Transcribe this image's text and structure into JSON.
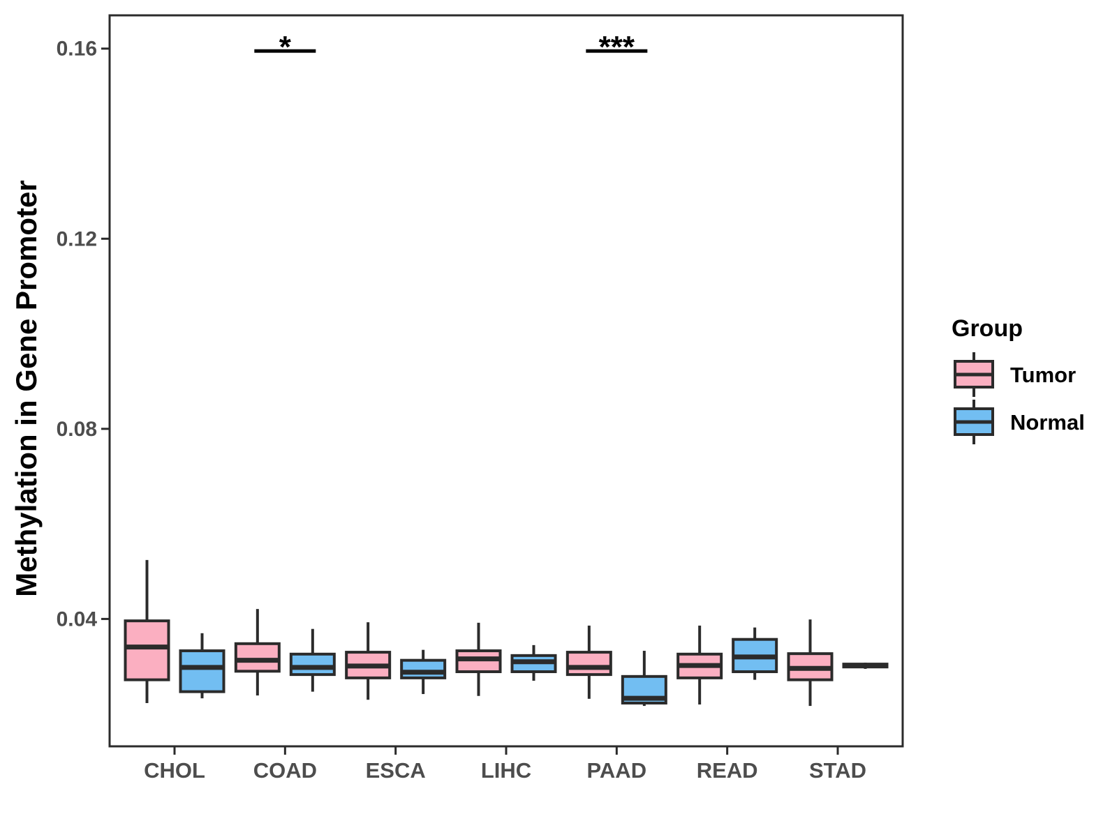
{
  "chart_data": {
    "type": "boxplot",
    "title": "",
    "xlabel": "",
    "ylabel": "Methylation in Gene Promoter",
    "categories": [
      "CHOL",
      "COAD",
      "ESCA",
      "LIHC",
      "PAAD",
      "READ",
      "STAD"
    ],
    "y_ticks": [
      0.04,
      0.08,
      0.12,
      0.16
    ],
    "y_tick_labels": [
      "0.04",
      "0.08",
      "0.12",
      "0.16"
    ],
    "ylim": [
      0.0132,
      0.167
    ],
    "grid": "off",
    "colors": {
      "tumor_fill": "#FBAFC1",
      "normal_fill": "#72BEF2",
      "stroke": "#2B2B2B",
      "axis_text": "#4D4D4D",
      "text": "#000000"
    },
    "legend": {
      "title": "Group",
      "position": "right",
      "entries": [
        {
          "label": "Tumor",
          "color": "#FBAFC1"
        },
        {
          "label": "Normal",
          "color": "#72BEF2"
        }
      ]
    },
    "series": [
      {
        "name": "Tumor",
        "color": "#FBAFC1",
        "boxes": [
          {
            "category": "CHOL",
            "min": 0.0223,
            "q1": 0.0272,
            "median": 0.0341,
            "q3": 0.0396,
            "max": 0.0524
          },
          {
            "category": "COAD",
            "min": 0.0239,
            "q1": 0.029,
            "median": 0.0313,
            "q3": 0.0348,
            "max": 0.0421
          },
          {
            "category": "ESCA",
            "min": 0.023,
            "q1": 0.0276,
            "median": 0.0301,
            "q3": 0.033,
            "max": 0.0393
          },
          {
            "category": "LIHC",
            "min": 0.0238,
            "q1": 0.0289,
            "median": 0.0316,
            "q3": 0.0333,
            "max": 0.0392
          },
          {
            "category": "PAAD",
            "min": 0.0232,
            "q1": 0.0283,
            "median": 0.0298,
            "q3": 0.033,
            "max": 0.0386
          },
          {
            "category": "READ",
            "min": 0.022,
            "q1": 0.0276,
            "median": 0.0302,
            "q3": 0.0326,
            "max": 0.0386
          },
          {
            "category": "STAD",
            "min": 0.0217,
            "q1": 0.0272,
            "median": 0.0296,
            "q3": 0.0327,
            "max": 0.0399
          }
        ]
      },
      {
        "name": "Normal",
        "color": "#72BEF2",
        "boxes": [
          {
            "category": "CHOL",
            "min": 0.0233,
            "q1": 0.0247,
            "median": 0.0298,
            "q3": 0.0333,
            "max": 0.037
          },
          {
            "category": "COAD",
            "min": 0.0247,
            "q1": 0.0283,
            "median": 0.0298,
            "q3": 0.0326,
            "max": 0.0379
          },
          {
            "category": "ESCA",
            "min": 0.0242,
            "q1": 0.0276,
            "median": 0.0288,
            "q3": 0.0313,
            "max": 0.0335
          },
          {
            "category": "LIHC",
            "min": 0.027,
            "q1": 0.0289,
            "median": 0.031,
            "q3": 0.0323,
            "max": 0.0345
          },
          {
            "category": "PAAD",
            "min": 0.0217,
            "q1": 0.0223,
            "median": 0.0233,
            "q3": 0.0279,
            "max": 0.0333
          },
          {
            "category": "READ",
            "min": 0.0272,
            "q1": 0.0289,
            "median": 0.032,
            "q3": 0.0357,
            "max": 0.0382
          },
          {
            "category": "STAD",
            "min": 0.0295,
            "q1": 0.0299,
            "median": 0.0302,
            "q3": 0.0305,
            "max": 0.0308
          }
        ]
      }
    ],
    "annotations": [
      {
        "category": "COAD",
        "label": "*",
        "y": 0.1595
      },
      {
        "category": "PAAD",
        "label": "***",
        "y": 0.1595
      }
    ]
  }
}
